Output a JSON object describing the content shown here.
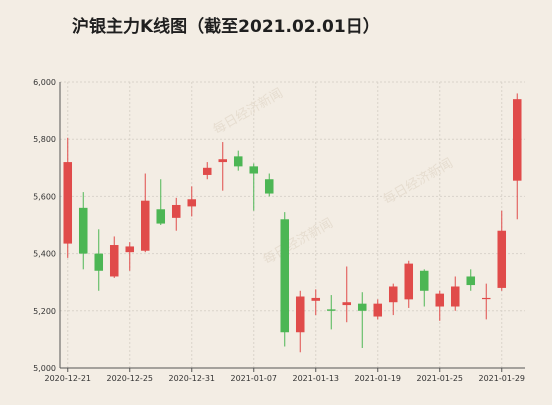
{
  "chart_data": {
    "type": "candlestick",
    "title": "沪银主力K线图（截至2021.02.01日）",
    "xlabel": "",
    "ylabel": "",
    "ylim": [
      5000,
      6000
    ],
    "yticks": [
      5000,
      5200,
      5400,
      5600,
      5800,
      6000
    ],
    "ytick_labels": [
      "5,000",
      "5,200",
      "5,400",
      "5,600",
      "5,800",
      "6,000"
    ],
    "x_tick_labels": [
      "2020-12-21",
      "2020-12-25",
      "2020-12-31",
      "2021-01-07",
      "2021-01-13",
      "2021-01-19",
      "2021-01-25",
      "2021-01-29"
    ],
    "x_tick_indices": [
      0,
      4,
      8,
      12,
      16,
      20,
      24,
      28
    ],
    "grid": true,
    "watermark": "每日经济新闻",
    "colors": {
      "up": "#e04b4a",
      "down": "#4cb654",
      "grid": "#d9d3ca",
      "axis": "#555555",
      "background": "#f3ede4"
    },
    "candles": [
      {
        "o": 5435,
        "h": 5805,
        "l": 5385,
        "c": 5720
      },
      {
        "o": 5560,
        "h": 5615,
        "l": 5345,
        "c": 5400
      },
      {
        "o": 5400,
        "h": 5485,
        "l": 5270,
        "c": 5340
      },
      {
        "o": 5320,
        "h": 5460,
        "l": 5315,
        "c": 5430
      },
      {
        "o": 5405,
        "h": 5440,
        "l": 5340,
        "c": 5425
      },
      {
        "o": 5410,
        "h": 5680,
        "l": 5405,
        "c": 5585
      },
      {
        "o": 5555,
        "h": 5660,
        "l": 5500,
        "c": 5505
      },
      {
        "o": 5525,
        "h": 5595,
        "l": 5480,
        "c": 5570
      },
      {
        "o": 5565,
        "h": 5635,
        "l": 5530,
        "c": 5590
      },
      {
        "o": 5675,
        "h": 5720,
        "l": 5660,
        "c": 5700
      },
      {
        "o": 5720,
        "h": 5790,
        "l": 5620,
        "c": 5730
      },
      {
        "o": 5740,
        "h": 5760,
        "l": 5690,
        "c": 5705
      },
      {
        "o": 5705,
        "h": 5715,
        "l": 5550,
        "c": 5680
      },
      {
        "o": 5660,
        "h": 5680,
        "l": 5600,
        "c": 5610
      },
      {
        "o": 5520,
        "h": 5545,
        "l": 5075,
        "c": 5125
      },
      {
        "o": 5125,
        "h": 5270,
        "l": 5055,
        "c": 5250
      },
      {
        "o": 5235,
        "h": 5275,
        "l": 5185,
        "c": 5245
      },
      {
        "o": 5205,
        "h": 5255,
        "l": 5135,
        "c": 5200
      },
      {
        "o": 5220,
        "h": 5355,
        "l": 5160,
        "c": 5230
      },
      {
        "o": 5225,
        "h": 5265,
        "l": 5070,
        "c": 5200
      },
      {
        "o": 5180,
        "h": 5240,
        "l": 5170,
        "c": 5225
      },
      {
        "o": 5230,
        "h": 5295,
        "l": 5185,
        "c": 5285
      },
      {
        "o": 5240,
        "h": 5375,
        "l": 5210,
        "c": 5365
      },
      {
        "o": 5340,
        "h": 5345,
        "l": 5215,
        "c": 5270
      },
      {
        "o": 5215,
        "h": 5270,
        "l": 5165,
        "c": 5260
      },
      {
        "o": 5215,
        "h": 5320,
        "l": 5200,
        "c": 5285
      },
      {
        "o": 5320,
        "h": 5345,
        "l": 5270,
        "c": 5290
      },
      {
        "o": 5245,
        "h": 5295,
        "l": 5170,
        "c": 5245
      },
      {
        "o": 5280,
        "h": 5550,
        "l": 5270,
        "c": 5480
      },
      {
        "o": 5655,
        "h": 5960,
        "l": 5520,
        "c": 5940
      }
    ]
  }
}
